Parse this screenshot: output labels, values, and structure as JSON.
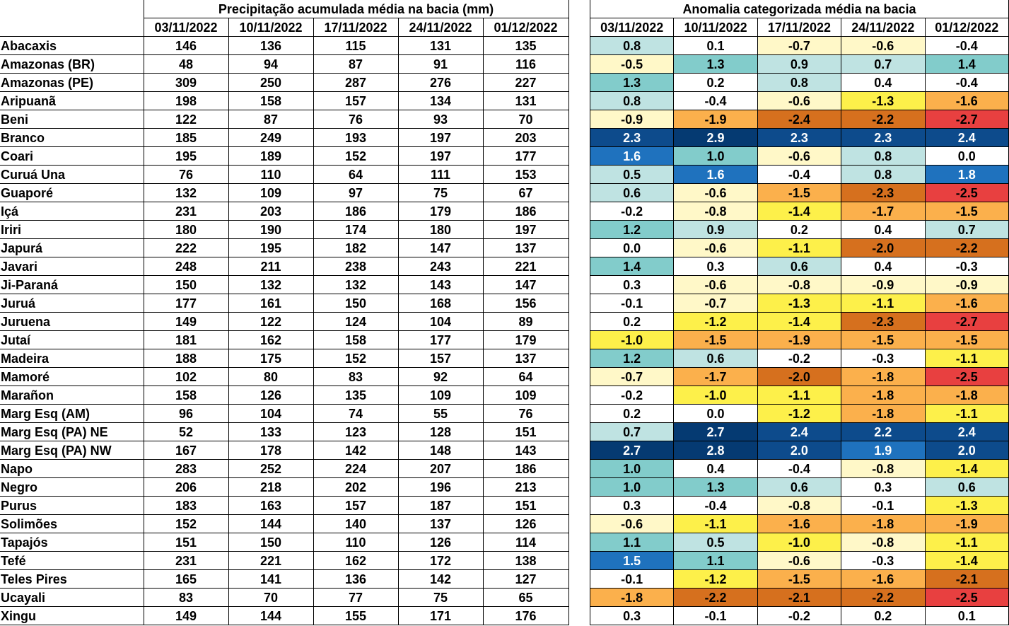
{
  "precip_title": "Precipitação acumulada média na bacia (mm)",
  "anom_title": "Anomalia categorizada média na bacia",
  "dates": [
    "03/11/2022",
    "10/11/2022",
    "17/11/2022",
    "24/11/2022",
    "01/12/2022"
  ],
  "category_colors": {
    "-2.5": "#e84040",
    "-2.0": "#d6701e",
    "-1.5": "#fbb04c",
    "-1.0": "#fdf04a",
    "-0.5": "#fff8c8",
    "neutral": "#ffffff",
    "0.5": "#bfe3e2",
    "1.0": "#82cccb",
    "1.5": "#1f72be",
    "2.0": "#0d4b8c",
    "2.5": "#053a72"
  },
  "rows": [
    {
      "name": "Abacaxis",
      "precip": [
        "146",
        "136",
        "115",
        "131",
        "135"
      ],
      "anom": [
        "0.8",
        "0.1",
        "-0.7",
        "-0.6",
        "-0.4"
      ]
    },
    {
      "name": "Amazonas (BR)",
      "precip": [
        "48",
        "94",
        "87",
        "91",
        "116"
      ],
      "anom": [
        "-0.5",
        "1.3",
        "0.9",
        "0.7",
        "1.4"
      ]
    },
    {
      "name": "Amazonas (PE)",
      "precip": [
        "309",
        "250",
        "287",
        "276",
        "227"
      ],
      "anom": [
        "1.3",
        "0.2",
        "0.8",
        "0.4",
        "-0.4"
      ]
    },
    {
      "name": "Aripuanã",
      "precip": [
        "198",
        "158",
        "157",
        "134",
        "131"
      ],
      "anom": [
        "0.8",
        "-0.4",
        "-0.6",
        "-1.3",
        "-1.6"
      ]
    },
    {
      "name": "Beni",
      "precip": [
        "122",
        "87",
        "76",
        "93",
        "70"
      ],
      "anom": [
        "-0.9",
        "-1.9",
        "-2.4",
        "-2.2",
        "-2.7"
      ]
    },
    {
      "name": "Branco",
      "precip": [
        "185",
        "249",
        "193",
        "197",
        "203"
      ],
      "anom": [
        "2.3",
        "2.9",
        "2.3",
        "2.3",
        "2.4"
      ]
    },
    {
      "name": "Coari",
      "precip": [
        "195",
        "189",
        "152",
        "197",
        "177"
      ],
      "anom": [
        "1.6",
        "1.0",
        "-0.6",
        "0.8",
        "0.0"
      ]
    },
    {
      "name": "Curuá Una",
      "precip": [
        "76",
        "110",
        "64",
        "111",
        "153"
      ],
      "anom": [
        "0.5",
        "1.6",
        "-0.4",
        "0.8",
        "1.8"
      ]
    },
    {
      "name": "Guaporé",
      "precip": [
        "132",
        "109",
        "97",
        "75",
        "67"
      ],
      "anom": [
        "0.6",
        "-0.6",
        "-1.5",
        "-2.3",
        "-2.5"
      ]
    },
    {
      "name": "Içá",
      "precip": [
        "231",
        "203",
        "186",
        "179",
        "186"
      ],
      "anom": [
        "-0.2",
        "-0.8",
        "-1.4",
        "-1.7",
        "-1.5"
      ]
    },
    {
      "name": "Iriri",
      "precip": [
        "180",
        "190",
        "174",
        "180",
        "197"
      ],
      "anom": [
        "1.2",
        "0.9",
        "0.2",
        "0.4",
        "0.7"
      ]
    },
    {
      "name": "Japurá",
      "precip": [
        "222",
        "195",
        "182",
        "147",
        "137"
      ],
      "anom": [
        "0.0",
        "-0.6",
        "-1.1",
        "-2.0",
        "-2.2"
      ]
    },
    {
      "name": "Javari",
      "precip": [
        "248",
        "211",
        "238",
        "243",
        "221"
      ],
      "anom": [
        "1.4",
        "0.3",
        "0.6",
        "0.4",
        "-0.3"
      ]
    },
    {
      "name": "Ji-Paraná",
      "precip": [
        "150",
        "132",
        "132",
        "143",
        "147"
      ],
      "anom": [
        "0.3",
        "-0.6",
        "-0.8",
        "-0.9",
        "-0.9"
      ]
    },
    {
      "name": "Juruá",
      "precip": [
        "177",
        "161",
        "150",
        "168",
        "156"
      ],
      "anom": [
        "-0.1",
        "-0.7",
        "-1.3",
        "-1.1",
        "-1.6"
      ]
    },
    {
      "name": "Juruena",
      "precip": [
        "149",
        "122",
        "124",
        "104",
        "89"
      ],
      "anom": [
        "0.2",
        "-1.2",
        "-1.4",
        "-2.3",
        "-2.7"
      ]
    },
    {
      "name": "Jutaí",
      "precip": [
        "181",
        "162",
        "158",
        "177",
        "179"
      ],
      "anom": [
        "-1.0",
        "-1.5",
        "-1.9",
        "-1.5",
        "-1.5"
      ]
    },
    {
      "name": "Madeira",
      "precip": [
        "188",
        "175",
        "152",
        "157",
        "137"
      ],
      "anom": [
        "1.2",
        "0.6",
        "-0.2",
        "-0.3",
        "-1.1"
      ]
    },
    {
      "name": "Mamoré",
      "precip": [
        "102",
        "80",
        "83",
        "92",
        "64"
      ],
      "anom": [
        "-0.7",
        "-1.7",
        "-2.0",
        "-1.8",
        "-2.5"
      ]
    },
    {
      "name": "Marañon",
      "precip": [
        "158",
        "126",
        "135",
        "109",
        "109"
      ],
      "anom": [
        "-0.2",
        "-1.0",
        "-1.1",
        "-1.8",
        "-1.8"
      ]
    },
    {
      "name": "Marg Esq (AM)",
      "precip": [
        "96",
        "104",
        "74",
        "55",
        "76"
      ],
      "anom": [
        "0.2",
        "0.0",
        "-1.2",
        "-1.8",
        "-1.1"
      ]
    },
    {
      "name": "Marg Esq (PA) NE",
      "precip": [
        "52",
        "133",
        "123",
        "128",
        "151"
      ],
      "anom": [
        "0.7",
        "2.7",
        "2.4",
        "2.2",
        "2.4"
      ]
    },
    {
      "name": "Marg Esq (PA) NW",
      "precip": [
        "167",
        "178",
        "142",
        "148",
        "143"
      ],
      "anom": [
        "2.7",
        "2.8",
        "2.0",
        "1.9",
        "2.0"
      ]
    },
    {
      "name": "Napo",
      "precip": [
        "283",
        "252",
        "224",
        "207",
        "186"
      ],
      "anom": [
        "1.0",
        "0.4",
        "-0.4",
        "-0.8",
        "-1.4"
      ]
    },
    {
      "name": "Negro",
      "precip": [
        "206",
        "218",
        "202",
        "196",
        "213"
      ],
      "anom": [
        "1.0",
        "1.3",
        "0.6",
        "0.3",
        "0.6"
      ]
    },
    {
      "name": "Purus",
      "precip": [
        "183",
        "163",
        "157",
        "187",
        "151"
      ],
      "anom": [
        "0.3",
        "-0.4",
        "-0.8",
        "-0.1",
        "-1.3"
      ]
    },
    {
      "name": "Solimões",
      "precip": [
        "152",
        "144",
        "140",
        "137",
        "126"
      ],
      "anom": [
        "-0.6",
        "-1.1",
        "-1.6",
        "-1.8",
        "-1.9"
      ]
    },
    {
      "name": "Tapajós",
      "precip": [
        "151",
        "150",
        "110",
        "126",
        "114"
      ],
      "anom": [
        "1.1",
        "0.5",
        "-1.0",
        "-0.8",
        "-1.1"
      ]
    },
    {
      "name": "Tefé",
      "precip": [
        "231",
        "221",
        "162",
        "172",
        "138"
      ],
      "anom": [
        "1.5",
        "1.1",
        "-0.6",
        "-0.3",
        "-1.4"
      ]
    },
    {
      "name": "Teles Pires",
      "precip": [
        "165",
        "141",
        "136",
        "142",
        "127"
      ],
      "anom": [
        "-0.1",
        "-1.2",
        "-1.5",
        "-1.6",
        "-2.1"
      ]
    },
    {
      "name": "Ucayali",
      "precip": [
        "83",
        "70",
        "77",
        "75",
        "65"
      ],
      "anom": [
        "-1.8",
        "-2.2",
        "-2.1",
        "-2.2",
        "-2.5"
      ]
    },
    {
      "name": "Xingu",
      "precip": [
        "149",
        "144",
        "155",
        "171",
        "176"
      ],
      "anom": [
        "0.3",
        "-0.1",
        "-0.2",
        "0.2",
        "0.1"
      ]
    }
  ]
}
